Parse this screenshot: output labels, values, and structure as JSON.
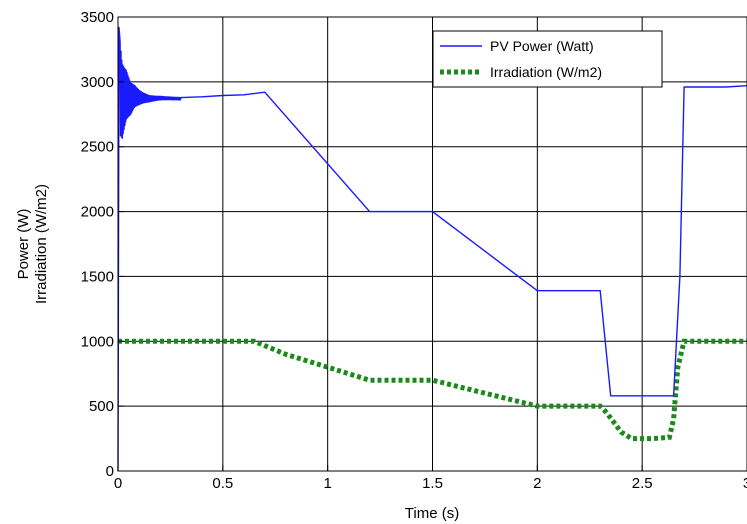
{
  "chart_data": {
    "type": "line",
    "title": "",
    "xlabel": "Time (s)",
    "ylabel_lines": [
      "Power (W)",
      "Irradiation (W/m2)"
    ],
    "xlim": [
      0,
      3
    ],
    "ylim": [
      0,
      3500
    ],
    "xticks": [
      0,
      0.5,
      1,
      1.5,
      2,
      2.5,
      3
    ],
    "xtick_labels": [
      "0",
      "0.5",
      "1",
      "1.5",
      "2",
      "2.5",
      "3"
    ],
    "yticks": [
      0,
      500,
      1000,
      1500,
      2000,
      2500,
      3000,
      3500
    ],
    "ytick_labels": [
      "0",
      "500",
      "1000",
      "1500",
      "2000",
      "2500",
      "3000",
      "3500"
    ],
    "grid": true,
    "legend_position": "top-right",
    "series": [
      {
        "name": "PV Power (Watt)",
        "color": "#1a1aff",
        "style": "solid",
        "x": [
          0,
          0.005,
          0.01,
          0.02,
          0.04,
          0.06,
          0.08,
          0.1,
          0.15,
          0.2,
          0.3,
          0.4,
          0.5,
          0.6,
          0.7,
          1.2,
          1.5,
          2.0,
          2.3,
          2.33,
          2.35,
          2.65,
          2.68,
          2.7,
          2.8,
          2.9,
          3.0
        ],
        "y": [
          0,
          3420,
          2950,
          2850,
          2900,
          2870,
          2890,
          2880,
          2870,
          2875,
          2870,
          2885,
          2895,
          2900,
          2920,
          2000,
          2000,
          1390,
          1390,
          900,
          580,
          580,
          1500,
          2960,
          2960,
          2960,
          2970
        ]
      },
      {
        "name": "Irradiation (W/m2)",
        "color": "#1a8a1a",
        "style": "dotted",
        "x": [
          0,
          0.65,
          0.8,
          1.0,
          1.2,
          1.5,
          1.75,
          2.0,
          2.3,
          2.33,
          2.4,
          2.45,
          2.55,
          2.63,
          2.65,
          2.67,
          2.7,
          3.0
        ],
        "y": [
          1000,
          1000,
          900,
          800,
          700,
          700,
          600,
          500,
          500,
          450,
          300,
          250,
          250,
          260,
          400,
          800,
          1000,
          1000
        ]
      }
    ]
  }
}
